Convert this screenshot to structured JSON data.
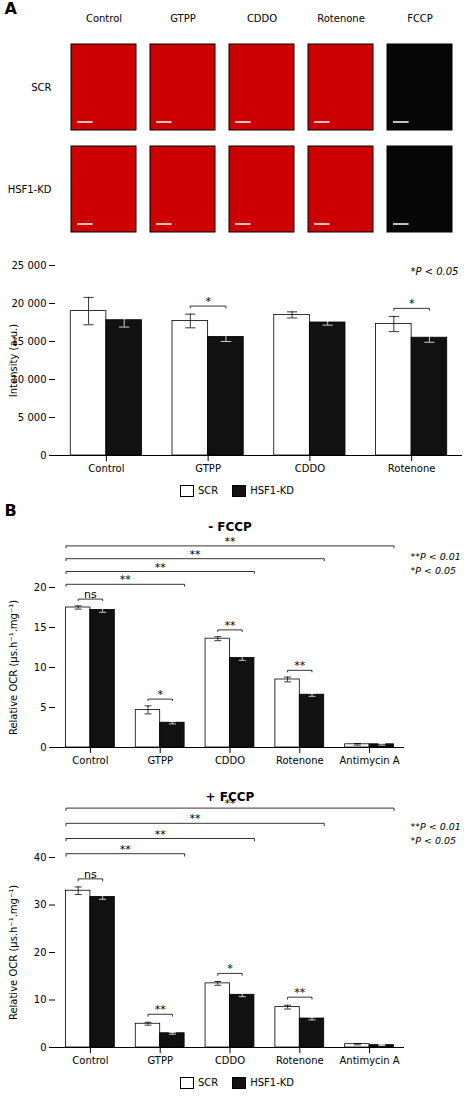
{
  "chart_data": [
    {
      "type": "image_grid",
      "panel_label": "A",
      "categories": [
        "Control",
        "GTPP",
        "CDDO",
        "Rotenone",
        "FCCP"
      ],
      "series": [
        {
          "name": "SCR"
        },
        {
          "name": "HSF1-KD"
        }
      ],
      "colors": [
        "#cc0000",
        "#cc0000",
        "#cc0000",
        "#cc0000",
        "#060606"
      ]
    },
    {
      "type": "bar",
      "categories": [
        "Control",
        "GTPP",
        "CDDO",
        "Rotenone"
      ],
      "series": [
        {
          "name": "SCR",
          "color": "#ffffff",
          "values": [
            19000,
            17700,
            18500,
            17300
          ],
          "errors": [
            1800,
            900,
            400,
            1000
          ]
        },
        {
          "name": "HSF1-KD",
          "color": "#111111",
          "values": [
            17800,
            15600,
            17500,
            15500
          ],
          "errors": [
            900,
            600,
            350,
            600
          ]
        }
      ],
      "ylabel": "Intensity (a.u.)",
      "ylim": [
        0,
        25000
      ],
      "yticks": [
        0,
        {
          "value": 5000,
          "label": "5 000"
        },
        {
          "value": 10000,
          "label": "10 000"
        },
        {
          "value": 15000,
          "label": "15 000"
        },
        {
          "value": 20000,
          "label": "20 000"
        },
        {
          "value": 25000,
          "label": "25 000"
        }
      ],
      "significance": [
        null,
        "*",
        null,
        "*"
      ],
      "annotations": [
        "*P < 0.05"
      ],
      "legend": "bottom"
    },
    {
      "type": "bar",
      "panel_label": "B",
      "title": "- FCCP",
      "categories": [
        "Control",
        "GTPP",
        "CDDO",
        "Rotenone",
        "Antimycin A"
      ],
      "series": [
        {
          "name": "SCR",
          "color": "#ffffff",
          "values": [
            17.5,
            4.7,
            13.6,
            8.5,
            0.4
          ],
          "errors": [
            0.2,
            0.5,
            0.25,
            0.3,
            0.1
          ]
        },
        {
          "name": "HSF1-KD",
          "color": "#111111",
          "values": [
            17.2,
            3.1,
            11.2,
            6.6,
            0.4
          ],
          "errors": [
            0.3,
            0.15,
            0.3,
            0.2,
            0.1
          ]
        }
      ],
      "ylabel": "Relative OCR (μs.h⁻¹.mg⁻¹)",
      "ylim": [
        0,
        20
      ],
      "yticks": [
        0,
        5,
        10,
        15,
        20
      ],
      "significance": [
        "ns",
        "*",
        "**",
        "**",
        null
      ],
      "comparisons": [
        {
          "from": "Control",
          "to": "GTPP",
          "label": "**"
        },
        {
          "from": "Control",
          "to": "CDDO",
          "label": "**"
        },
        {
          "from": "Control",
          "to": "Rotenone",
          "label": "**"
        },
        {
          "from": "Control",
          "to": "Antimycin A",
          "label": "**"
        }
      ],
      "annotations": [
        "**P < 0.01",
        "*P < 0.05"
      ]
    },
    {
      "type": "bar",
      "title": "+ FCCP",
      "categories": [
        "Control",
        "GTPP",
        "CDDO",
        "Rotenone",
        "Antimycin A"
      ],
      "series": [
        {
          "name": "SCR",
          "color": "#ffffff",
          "values": [
            33.0,
            5.0,
            13.5,
            8.5,
            0.7
          ],
          "errors": [
            0.8,
            0.3,
            0.4,
            0.4,
            0.15
          ]
        },
        {
          "name": "HSF1-KD",
          "color": "#111111",
          "values": [
            31.7,
            3.0,
            11.1,
            6.1,
            0.5
          ],
          "errors": [
            0.5,
            0.2,
            0.4,
            0.3,
            0.1
          ]
        }
      ],
      "ylabel": "Relative OCR (μs.h⁻¹.mg⁻¹)",
      "ylim": [
        0,
        40
      ],
      "yticks": [
        0,
        10,
        20,
        30,
        40
      ],
      "significance": [
        "ns",
        "**",
        "*",
        "**",
        null
      ],
      "comparisons": [
        {
          "from": "Control",
          "to": "GTPP",
          "label": "**"
        },
        {
          "from": "Control",
          "to": "CDDO",
          "label": "**"
        },
        {
          "from": "Control",
          "to": "Rotenone",
          "label": "**"
        },
        {
          "from": "Control",
          "to": "Antimycin A",
          "label": "**"
        }
      ],
      "annotations": [
        "**P < 0.01",
        "*P < 0.05"
      ],
      "legend": "bottom"
    }
  ]
}
